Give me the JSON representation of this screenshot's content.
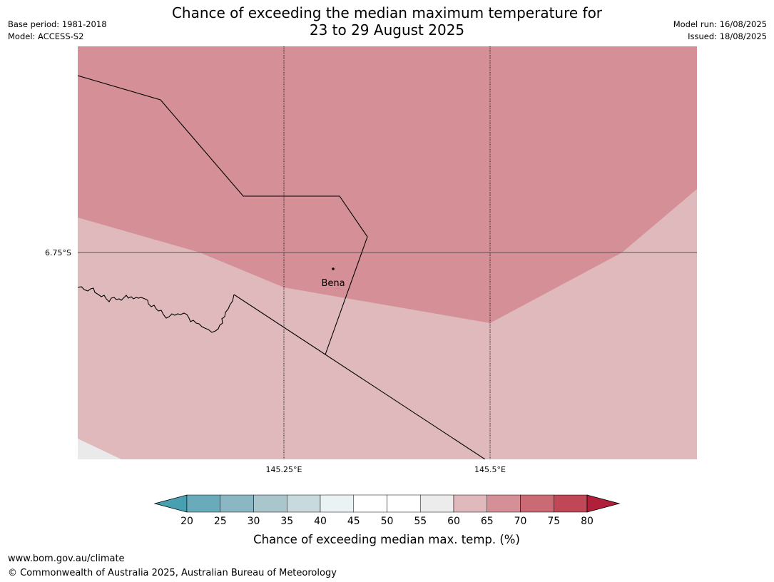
{
  "header": {
    "title_line1": "Chance of exceeding the median maximum temperature for",
    "title_line2": "23 to 29 August 2025",
    "base_period": "Base period: 1981-2018",
    "model": "Model: ACCESS-S2",
    "model_run": "Model run: 16/08/2025",
    "issued": "Issued: 18/08/2025"
  },
  "map": {
    "lat_labels": [
      "6.75°S"
    ],
    "lon_labels": [
      "145.25°E",
      "145.5°E"
    ],
    "place": {
      "name": "Bena"
    },
    "region_colors": {
      "band_65_70": "#d49096",
      "band_60_65": "#e0b9bd",
      "band_55_60": "#ebeaea"
    }
  },
  "colorbar": {
    "label": "Chance of exceeding median max. temp. (%)",
    "ticks": [
      "20",
      "25",
      "30",
      "35",
      "40",
      "45",
      "50",
      "55",
      "60",
      "65",
      "70",
      "75",
      "80"
    ],
    "colors": [
      "#46a0b0",
      "#6aabbb",
      "#8bb7c4",
      "#a8c6cc",
      "#c8dadd",
      "#eaf2f4",
      "#ffffff",
      "#ffffff",
      "#ececec",
      "#e0b9bd",
      "#d49096",
      "#c96a74",
      "#bf4756",
      "#b0203a"
    ]
  },
  "footer": {
    "url": "www.bom.gov.au/climate",
    "copyright": "© Commonwealth of Australia 2025, Australian Bureau of Meteorology"
  }
}
